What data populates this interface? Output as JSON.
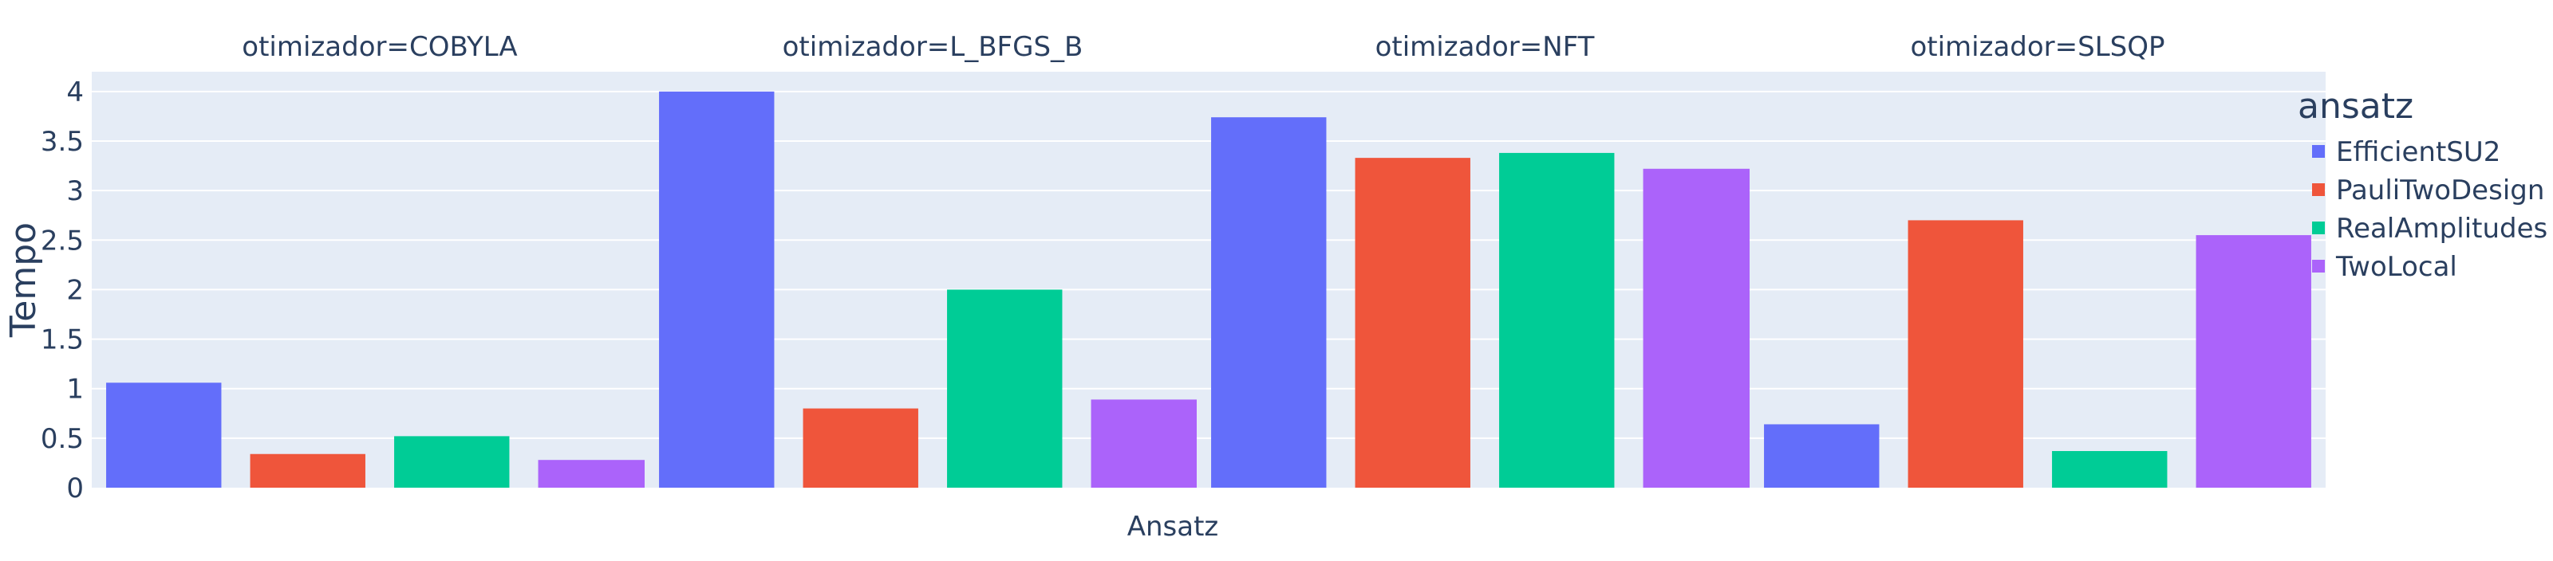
{
  "chart_data": {
    "type": "bar",
    "facet_label": "otimizador",
    "facets": [
      {
        "title": "otimizador=COBYLA",
        "values": [
          1.06,
          0.34,
          0.52,
          0.28
        ]
      },
      {
        "title": "otimizador=L_BFGS_B",
        "values": [
          4.0,
          0.8,
          2.0,
          0.89
        ]
      },
      {
        "title": "otimizador=NFT",
        "values": [
          3.74,
          3.33,
          3.38,
          3.22
        ]
      },
      {
        "title": "otimizador=SLSQP",
        "values": [
          0.64,
          2.7,
          0.37,
          2.55
        ]
      }
    ],
    "categories": [
      "EfficientSU2",
      "PauliTwoDesign",
      "RealAmplitudes",
      "TwoLocal"
    ],
    "series_colors": [
      "#636efa",
      "#ef553b",
      "#00cc96",
      "#ab63fa"
    ],
    "xlabel": "Ansatz",
    "ylabel": "Tempo",
    "ylim": [
      0,
      4.2
    ],
    "yticks": [
      0,
      0.5,
      1,
      1.5,
      2,
      2.5,
      3,
      3.5,
      4
    ],
    "ytick_labels": [
      "0",
      "0.5",
      "1",
      "1.5",
      "2",
      "2.5",
      "3",
      "3.5",
      "4"
    ],
    "legend": {
      "title": "ansatz",
      "entries": [
        "EfficientSU2",
        "PauliTwoDesign",
        "RealAmplitudes",
        "TwoLocal"
      ],
      "placement": "right"
    },
    "grid": true,
    "plot_bgcolor": "#e5ecf6",
    "gridcolor": "#ffffff"
  }
}
